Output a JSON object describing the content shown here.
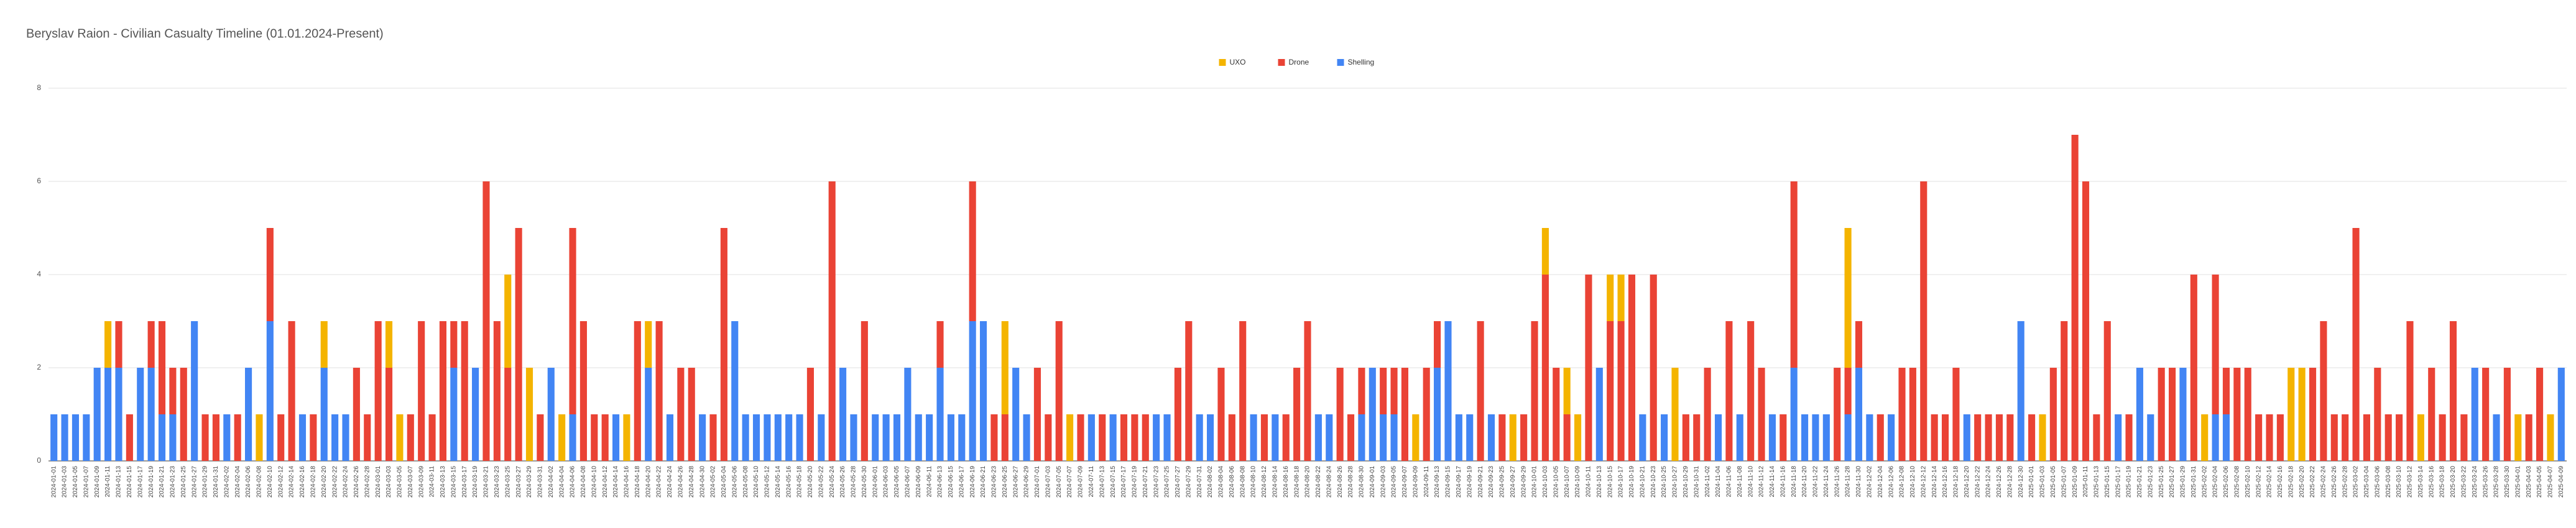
{
  "chart_data": {
    "type": "stacked_bar",
    "title": "Beryslav Raion - Civilian Casualty Timeline (01.01.2024-Present)",
    "legend": "top",
    "grid": true,
    "ylim": [
      0,
      8
    ],
    "yticks": [
      0,
      2,
      4,
      6,
      8
    ],
    "categories": [
      "2024-01-01",
      "2024-01-03",
      "2024-01-05",
      "2024-01-07",
      "2024-01-09",
      "2024-01-11",
      "2024-01-13",
      "2024-01-15",
      "2024-01-17",
      "2024-01-19",
      "2024-01-21",
      "2024-01-23",
      "2024-01-25",
      "2024-01-27",
      "2024-01-29",
      "2024-01-31",
      "2024-02-02",
      "2024-02-04",
      "2024-02-06",
      "2024-02-08",
      "2024-02-10",
      "2024-02-12",
      "2024-02-14",
      "2024-02-16",
      "2024-02-18",
      "2024-02-20",
      "2024-02-22",
      "2024-02-24",
      "2024-02-26",
      "2024-02-28",
      "2024-03-01",
      "2024-03-03",
      "2024-03-05",
      "2024-03-07",
      "2024-03-09",
      "2024-03-11",
      "2024-03-13",
      "2024-03-15",
      "2024-03-17",
      "2024-03-19",
      "2024-03-21",
      "2024-03-23",
      "2024-03-25",
      "2024-03-27",
      "2024-03-29",
      "2024-03-31",
      "2024-04-02",
      "2024-04-04",
      "2024-04-06",
      "2024-04-08",
      "2024-04-10",
      "2024-04-12",
      "2024-04-14",
      "2024-04-16",
      "2024-04-18",
      "2024-04-20",
      "2024-04-22",
      "2024-04-24",
      "2024-04-26",
      "2024-04-28",
      "2024-04-30",
      "2024-05-02",
      "2024-05-04",
      "2024-05-06",
      "2024-05-08",
      "2024-05-10",
      "2024-05-12",
      "2024-05-14",
      "2024-05-16",
      "2024-05-18",
      "2024-05-20",
      "2024-05-22",
      "2024-05-24",
      "2024-05-26",
      "2024-05-28",
      "2024-05-30",
      "2024-06-01",
      "2024-06-03",
      "2024-06-05",
      "2024-06-07",
      "2024-06-09",
      "2024-06-11",
      "2024-06-13",
      "2024-06-15",
      "2024-06-17",
      "2024-06-19",
      "2024-06-21",
      "2024-06-23",
      "2024-06-25",
      "2024-06-27",
      "2024-06-29",
      "2024-07-01",
      "2024-07-03",
      "2024-07-05",
      "2024-07-07",
      "2024-07-09",
      "2024-07-11",
      "2024-07-13",
      "2024-07-15",
      "2024-07-17",
      "2024-07-19",
      "2024-07-21",
      "2024-07-23",
      "2024-07-25",
      "2024-07-27",
      "2024-07-29",
      "2024-07-31",
      "2024-08-02",
      "2024-08-04",
      "2024-08-06",
      "2024-08-08",
      "2024-08-10",
      "2024-08-12",
      "2024-08-14",
      "2024-08-16",
      "2024-08-18",
      "2024-08-20",
      "2024-08-22",
      "2024-08-24",
      "2024-08-26",
      "2024-08-28",
      "2024-08-30",
      "2024-09-01",
      "2024-09-03",
      "2024-09-05",
      "2024-09-07",
      "2024-09-09",
      "2024-09-11",
      "2024-09-13",
      "2024-09-15",
      "2024-09-17",
      "2024-09-19",
      "2024-09-21",
      "2024-09-23",
      "2024-09-25",
      "2024-09-27",
      "2024-09-29",
      "2024-10-01",
      "2024-10-03",
      "2024-10-05",
      "2024-10-07",
      "2024-10-09",
      "2024-10-11",
      "2024-10-13",
      "2024-10-15",
      "2024-10-17",
      "2024-10-19",
      "2024-10-21",
      "2024-10-23",
      "2024-10-25",
      "2024-10-27",
      "2024-10-29",
      "2024-10-31",
      "2024-11-02",
      "2024-11-04",
      "2024-11-06",
      "2024-11-08",
      "2024-11-10",
      "2024-11-12",
      "2024-11-14",
      "2024-11-16",
      "2024-11-18",
      "2024-11-20",
      "2024-11-22",
      "2024-11-24",
      "2024-11-26",
      "2024-11-28",
      "2024-11-30",
      "2024-12-02",
      "2024-12-04",
      "2024-12-06",
      "2024-12-08",
      "2024-12-10",
      "2024-12-12",
      "2024-12-14",
      "2024-12-16",
      "2024-12-18",
      "2024-12-20",
      "2024-12-22",
      "2024-12-24",
      "2024-12-26",
      "2024-12-28",
      "2024-12-30",
      "2025-01-01",
      "2025-01-03",
      "2025-01-05",
      "2025-01-07",
      "2025-01-09",
      "2025-01-11",
      "2025-01-13",
      "2025-01-15",
      "2025-01-17",
      "2025-01-19",
      "2025-01-21",
      "2025-01-23",
      "2025-01-25",
      "2025-01-27",
      "2025-01-29",
      "2025-01-31",
      "2025-02-02",
      "2025-02-04",
      "2025-02-06",
      "2025-02-08",
      "2025-02-10",
      "2025-02-12",
      "2025-02-14",
      "2025-02-16",
      "2025-02-18",
      "2025-02-20",
      "2025-02-22",
      "2025-02-24",
      "2025-02-26",
      "2025-02-28",
      "2025-03-02",
      "2025-03-04",
      "2025-03-06",
      "2025-03-08",
      "2025-03-10",
      "2025-03-12",
      "2025-03-14",
      "2025-03-16",
      "2025-03-18",
      "2025-03-20",
      "2025-03-22",
      "2025-03-24",
      "2025-03-26",
      "2025-03-28",
      "2025-03-30",
      "2025-04-01",
      "2025-04-03",
      "2025-04-05",
      "2025-04-07",
      "2025-04-09"
    ],
    "series": [
      {
        "name": "UXO",
        "color": "#f4b400",
        "values": [
          0,
          0,
          0,
          0,
          0,
          1,
          0,
          0,
          0,
          0,
          0,
          0,
          0,
          0,
          0,
          0,
          0,
          0,
          0,
          1,
          0,
          0,
          0,
          0,
          0,
          1,
          0,
          0,
          0,
          0,
          0,
          1,
          1,
          0,
          0,
          0,
          0,
          0,
          0,
          0,
          0,
          0,
          2,
          0,
          2,
          0,
          0,
          1,
          0,
          0,
          0,
          0,
          0,
          1,
          0,
          1,
          0,
          0,
          0,
          0,
          0,
          0,
          0,
          0,
          0,
          0,
          0,
          0,
          0,
          0,
          0,
          0,
          0,
          0,
          0,
          0,
          0,
          0,
          0,
          0,
          0,
          0,
          0,
          0,
          0,
          0,
          0,
          0,
          2,
          0,
          0,
          0,
          0,
          0,
          1,
          0,
          0,
          0,
          0,
          0,
          0,
          0,
          0,
          0,
          0,
          0,
          0,
          0,
          0,
          0,
          0,
          0,
          0,
          0,
          0,
          0,
          0,
          0,
          0,
          0,
          0,
          0,
          0,
          0,
          0,
          0,
          1,
          0,
          0,
          0,
          0,
          0,
          0,
          0,
          0,
          1,
          0,
          0,
          1,
          0,
          1,
          1,
          0,
          0,
          1,
          1,
          0,
          0,
          0,
          0,
          2,
          0,
          0,
          0,
          0,
          0,
          0,
          0,
          0,
          0,
          0,
          0,
          0,
          0,
          0,
          0,
          3,
          0,
          0,
          0,
          0,
          0,
          0,
          0,
          0,
          0,
          0,
          0,
          0,
          0,
          0,
          0,
          0,
          0,
          1,
          0,
          0,
          0,
          0,
          0,
          0,
          0,
          0,
          0,
          0,
          0,
          0,
          0,
          0,
          1,
          0,
          0,
          0,
          0,
          0,
          0,
          0,
          2,
          2,
          0,
          0,
          0,
          0,
          0,
          0,
          0,
          0,
          0,
          0,
          1,
          0,
          0,
          0,
          0,
          0,
          0,
          0,
          0,
          1,
          0,
          0,
          1,
          0
        ]
      },
      {
        "name": "Drone",
        "color": "#ea4335",
        "values": [
          0,
          0,
          0,
          0,
          0,
          0,
          1,
          1,
          0,
          1,
          2,
          1,
          2,
          0,
          1,
          1,
          0,
          1,
          0,
          0,
          2,
          1,
          3,
          0,
          1,
          0,
          0,
          0,
          2,
          1,
          3,
          2,
          0,
          1,
          3,
          1,
          3,
          1,
          3,
          0,
          6,
          3,
          2,
          5,
          0,
          1,
          0,
          0,
          4,
          3,
          1,
          1,
          0,
          0,
          3,
          0,
          3,
          0,
          2,
          2,
          0,
          1,
          5,
          0,
          0,
          0,
          0,
          0,
          0,
          0,
          2,
          0,
          6,
          0,
          0,
          3,
          0,
          0,
          0,
          0,
          0,
          0,
          1,
          0,
          0,
          3,
          0,
          1,
          1,
          0,
          0,
          2,
          1,
          3,
          0,
          1,
          0,
          1,
          0,
          1,
          1,
          1,
          0,
          0,
          2,
          3,
          0,
          0,
          2,
          1,
          3,
          0,
          1,
          0,
          1,
          2,
          3,
          0,
          0,
          2,
          1,
          1,
          0,
          1,
          1,
          2,
          0,
          2,
          1,
          0,
          0,
          0,
          3,
          0,
          1,
          0,
          1,
          3,
          4,
          2,
          1,
          0,
          4,
          0,
          3,
          3,
          4,
          0,
          4,
          0,
          0,
          1,
          1,
          2,
          0,
          3,
          0,
          3,
          2,
          0,
          1,
          4,
          0,
          0,
          0,
          2,
          1,
          1,
          0,
          1,
          0,
          2,
          2,
          6,
          1,
          1,
          2,
          0,
          1,
          1,
          1,
          1,
          0,
          1,
          0,
          2,
          3,
          7,
          6,
          1,
          3,
          0,
          1,
          0,
          0,
          2,
          2,
          0,
          4,
          0,
          3,
          1,
          2,
          2,
          1,
          1,
          1,
          0,
          0,
          2,
          3,
          1,
          1,
          5,
          1,
          2,
          1,
          1,
          3,
          0,
          2,
          1,
          3,
          1,
          0,
          2,
          0,
          2,
          0,
          1,
          2,
          0,
          0
        ]
      },
      {
        "name": "Shelling",
        "color": "#4285f4",
        "values": [
          1,
          1,
          1,
          1,
          2,
          2,
          2,
          0,
          2,
          2,
          1,
          1,
          0,
          3,
          0,
          0,
          1,
          0,
          2,
          0,
          3,
          0,
          0,
          1,
          0,
          2,
          1,
          1,
          0,
          0,
          0,
          0,
          0,
          0,
          0,
          0,
          0,
          2,
          0,
          2,
          0,
          0,
          0,
          0,
          0,
          0,
          2,
          0,
          1,
          0,
          0,
          0,
          1,
          0,
          0,
          2,
          0,
          1,
          0,
          0,
          1,
          0,
          0,
          3,
          1,
          1,
          1,
          1,
          1,
          1,
          0,
          1,
          0,
          2,
          1,
          0,
          1,
          1,
          1,
          2,
          1,
          1,
          2,
          1,
          1,
          3,
          3,
          0,
          0,
          2,
          1,
          0,
          0,
          0,
          0,
          0,
          1,
          0,
          1,
          0,
          0,
          0,
          1,
          1,
          0,
          0,
          1,
          1,
          0,
          0,
          0,
          1,
          0,
          1,
          0,
          0,
          0,
          1,
          1,
          0,
          0,
          1,
          2,
          1,
          1,
          0,
          0,
          0,
          2,
          3,
          1,
          1,
          0,
          1,
          0,
          0,
          0,
          0,
          0,
          0,
          0,
          0,
          0,
          2,
          0,
          0,
          0,
          1,
          0,
          1,
          0,
          0,
          0,
          0,
          1,
          0,
          1,
          0,
          0,
          1,
          0,
          2,
          1,
          1,
          1,
          0,
          1,
          2,
          1,
          0,
          1,
          0,
          0,
          0,
          0,
          0,
          0,
          1,
          0,
          0,
          0,
          0,
          3,
          0,
          0,
          0,
          0,
          0,
          0,
          0,
          0,
          1,
          0,
          2,
          1,
          0,
          0,
          2,
          0,
          0,
          1,
          1,
          0,
          0,
          0,
          0,
          0,
          0,
          0,
          0,
          0,
          0,
          0,
          0,
          0,
          0,
          0,
          0,
          0,
          0,
          0,
          0,
          0,
          0,
          2,
          0,
          1,
          0,
          0,
          0,
          0,
          0,
          2
        ]
      }
    ]
  }
}
